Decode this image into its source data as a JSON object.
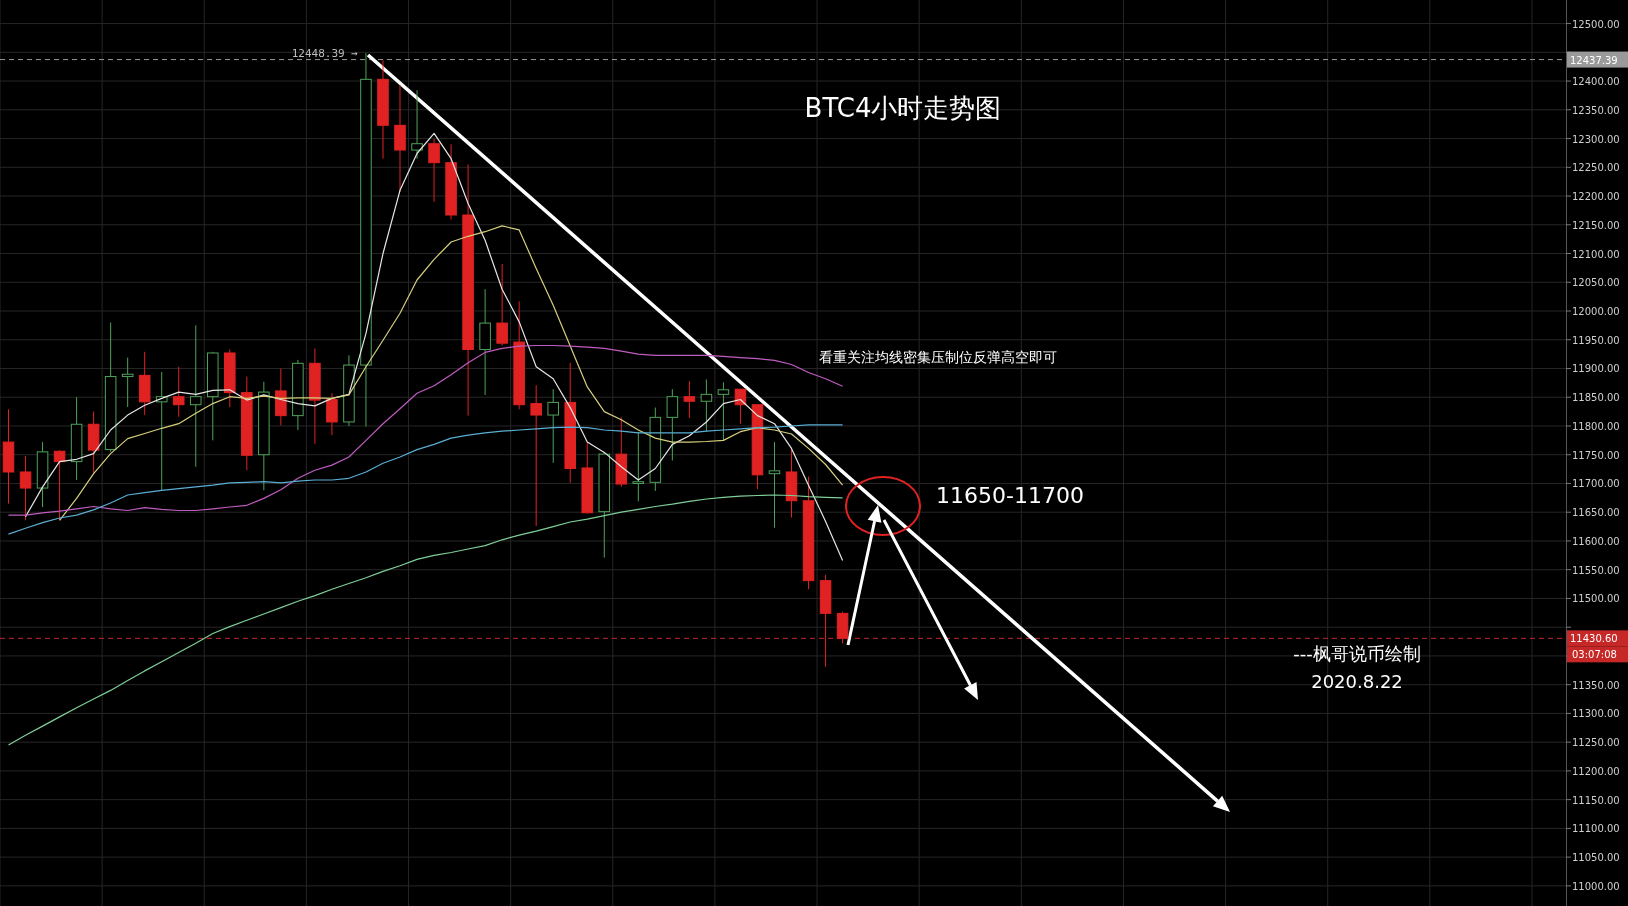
{
  "chart_data": {
    "type": "candlestick",
    "title": "BTC4小时走势图",
    "categories": [
      null,
      null,
      null,
      null,
      null,
      null,
      null,
      null,
      null,
      null,
      null,
      null,
      null,
      null,
      null,
      null,
      null,
      null,
      null,
      null,
      null,
      null,
      null,
      null,
      null,
      null,
      null,
      null,
      null,
      null,
      null,
      null,
      null,
      null,
      null,
      null,
      null,
      null,
      null,
      null,
      null,
      null,
      null,
      null,
      null,
      null,
      null,
      null,
      null,
      null,
      null,
      null,
      null,
      null,
      null,
      null,
      null,
      null,
      null,
      null,
      null,
      null,
      null,
      null,
      null,
      null,
      null,
      null,
      null,
      null,
      null,
      null,
      null,
      null,
      null,
      null,
      null,
      null,
      null,
      null,
      null,
      null,
      null,
      null,
      null,
      null,
      null,
      null,
      null,
      null,
      null,
      null
    ],
    "ohlc": [
      [
        11772,
        11829,
        11665,
        11720
      ],
      [
        11720,
        11748,
        11636,
        11692
      ],
      [
        11692,
        11772,
        11659,
        11755
      ],
      [
        11756,
        11758,
        11636,
        11738
      ],
      [
        11738,
        11850,
        11706,
        11803
      ],
      [
        11803,
        11825,
        11717,
        11758
      ],
      [
        11759,
        11980,
        11755,
        11886
      ],
      [
        11886,
        11919,
        11833,
        11890
      ],
      [
        11888,
        11929,
        11819,
        11842
      ],
      [
        11842,
        11894,
        11688,
        11851
      ],
      [
        11851,
        11903,
        11816,
        11837
      ],
      [
        11837,
        11975,
        11729,
        11851
      ],
      [
        11851,
        11929,
        11775,
        11927
      ],
      [
        11927,
        11933,
        11833,
        11858
      ],
      [
        11858,
        11886,
        11723,
        11749
      ],
      [
        11750,
        11877,
        11688,
        11859
      ],
      [
        11861,
        11900,
        11801,
        11818
      ],
      [
        11818,
        11915,
        11793,
        11909
      ],
      [
        11909,
        11935,
        11769,
        11845
      ],
      [
        11846,
        11857,
        11784,
        11807
      ],
      [
        11807,
        11923,
        11800,
        11906
      ],
      [
        11906,
        12448.39,
        11799,
        12403
      ],
      [
        12403,
        12436,
        12265,
        12323
      ],
      [
        12323,
        12393,
        12207,
        12280
      ],
      [
        12280,
        12384,
        12265,
        12291
      ],
      [
        12291,
        12300,
        12190,
        12258
      ],
      [
        12258,
        12290,
        12159,
        12167
      ],
      [
        12167,
        12255,
        11818,
        11933
      ],
      [
        11933,
        12038,
        11854,
        11979
      ],
      [
        11979,
        12082,
        11940,
        11944
      ],
      [
        11946,
        12017,
        11829,
        11837
      ],
      [
        11839,
        11871,
        11626,
        11819
      ],
      [
        11819,
        11864,
        11736,
        11841
      ],
      [
        11841,
        11910,
        11701,
        11726
      ],
      [
        11727,
        11772,
        11648,
        11649
      ],
      [
        11651,
        11754,
        11571,
        11751
      ],
      [
        11751,
        11815,
        11694,
        11699
      ],
      [
        11700,
        11790,
        11669,
        11703
      ],
      [
        11702,
        11832,
        11687,
        11815
      ],
      [
        11815,
        11864,
        11740,
        11851
      ],
      [
        11851,
        11878,
        11814,
        11843
      ],
      [
        11843,
        11881,
        11790,
        11855
      ],
      [
        11855,
        11876,
        11775,
        11863
      ],
      [
        11864,
        11864,
        11804,
        11837
      ],
      [
        11837,
        11837,
        11690,
        11715
      ],
      [
        11717,
        11772,
        11623,
        11722
      ],
      [
        11720,
        11761,
        11641,
        11670
      ],
      [
        11670,
        11712,
        11516,
        11531
      ],
      [
        11531,
        11541,
        11381,
        11474
      ],
      [
        11474,
        11477,
        11422,
        11430.6
      ],
      null,
      null,
      null,
      null,
      null,
      null,
      null,
      null,
      null,
      null,
      null,
      null,
      null,
      null,
      null,
      null,
      null,
      null,
      null,
      null,
      null,
      null,
      null,
      null,
      null,
      null,
      null,
      null,
      null,
      null,
      null,
      null,
      null,
      null,
      null,
      null,
      null,
      null,
      null,
      null,
      null,
      null
    ],
    "series": [
      {
        "type": "line",
        "color": "#e6e6e6",
        "values": [
          null,
          11642,
          11694,
          11738,
          11742,
          11752,
          11793,
          11819,
          11836,
          11848,
          11859,
          11855,
          11862,
          11863,
          11845,
          11854,
          11846,
          11839,
          11835,
          11848,
          11855,
          11961,
          12100,
          12210,
          12274,
          12309,
          12265,
          12187,
          12123,
          12038,
          11981,
          11903,
          11882,
          11832,
          11772,
          11754,
          11729,
          11706,
          11726,
          11768,
          11783,
          11807,
          11839,
          11846,
          11818,
          11804,
          11761,
          11697,
          11634,
          11566,
          null,
          null,
          null,
          null,
          null,
          null,
          null,
          null,
          null,
          null,
          null,
          null,
          null,
          null,
          null,
          null,
          null,
          null,
          null,
          null,
          null,
          null,
          null,
          null,
          null,
          null,
          null,
          null,
          null,
          null,
          null,
          null,
          null,
          null,
          null,
          null,
          null,
          null,
          null,
          null,
          null,
          null
        ]
      },
      {
        "type": "line",
        "color": "#d6cf7c",
        "values": [
          null,
          null,
          null,
          11636,
          11674,
          11717,
          11752,
          11778,
          11787,
          11796,
          11804,
          11822,
          11839,
          11851,
          11848,
          11852,
          11848,
          11849,
          11849,
          11848,
          11854,
          11903,
          11949,
          11996,
          12054,
          12090,
          12120,
          12130,
          12138,
          12148,
          12141,
          12074,
          12010,
          11939,
          11868,
          11825,
          11811,
          11793,
          11779,
          11772,
          11772,
          11773,
          11775,
          11790,
          11797,
          11793,
          11786,
          11761,
          11733,
          11697,
          null,
          null,
          null,
          null,
          null,
          null,
          null,
          null,
          null,
          null,
          null,
          null,
          null,
          null,
          null,
          null,
          null,
          null,
          null,
          null,
          null,
          null,
          null,
          null,
          null,
          null,
          null,
          null,
          null,
          null,
          null,
          null,
          null,
          null,
          null,
          null,
          null,
          null,
          null,
          null,
          null,
          null
        ]
      },
      {
        "type": "line",
        "color": "#c05cc0",
        "values": [
          11645,
          11645,
          11649,
          11652,
          11656,
          11660,
          11656,
          11653,
          11658,
          11655,
          11653,
          11653,
          11656,
          11659,
          11662,
          11674,
          11689,
          11709,
          11723,
          11732,
          11746,
          11775,
          11804,
          11830,
          11857,
          11870,
          11889,
          11910,
          11928,
          11935,
          11939,
          11940,
          11940,
          11939,
          11937,
          11935,
          11930,
          11925,
          11923,
          11923,
          11923,
          11923,
          11921,
          11919,
          11917,
          11914,
          11907,
          11893,
          11882,
          11869,
          null,
          null,
          null,
          null,
          null,
          null,
          null,
          null,
          null,
          null,
          null,
          null,
          null,
          null,
          null,
          null,
          null,
          null,
          null,
          null,
          null,
          null,
          null,
          null,
          null,
          null,
          null,
          null,
          null,
          null,
          null,
          null,
          null,
          null,
          null,
          null,
          null,
          null,
          null,
          null,
          null,
          null
        ]
      },
      {
        "type": "line",
        "color": "#5aaed4",
        "values": [
          11612,
          11622,
          11632,
          11640,
          11645,
          11654,
          11666,
          11680,
          11684,
          11688,
          11691,
          11694,
          11697,
          11701,
          11702,
          11703,
          11701,
          11704,
          11706,
          11706,
          11709,
          11720,
          11735,
          11746,
          11759,
          11768,
          11779,
          11784,
          11788,
          11791,
          11793,
          11795,
          11797,
          11798,
          11797,
          11793,
          11791,
          11788,
          11788,
          11788,
          11788,
          11791,
          11793,
          11795,
          11797,
          11798,
          11800,
          11802,
          11802,
          11802,
          null,
          null,
          null,
          null,
          null,
          null,
          null,
          null,
          null,
          null,
          null,
          null,
          null,
          null,
          null,
          null,
          null,
          null,
          null,
          null,
          null,
          null,
          null,
          null,
          null,
          null,
          null,
          null,
          null,
          null,
          null,
          null,
          null,
          null,
          null,
          null,
          null,
          null,
          null,
          null,
          null,
          null
        ]
      },
      {
        "type": "line",
        "color": "#7fcf98",
        "values": [
          11245,
          11262,
          11278,
          11294,
          11310,
          11325,
          11340,
          11357,
          11374,
          11390,
          11406,
          11422,
          11439,
          11451,
          11462,
          11473,
          11484,
          11495,
          11505,
          11516,
          11526,
          11536,
          11547,
          11557,
          11568,
          11575,
          11580,
          11586,
          11592,
          11602,
          11610,
          11617,
          11625,
          11633,
          11638,
          11644,
          11650,
          11655,
          11660,
          11664,
          11669,
          11673,
          11676,
          11678,
          11679,
          11680,
          11679,
          11677,
          11676,
          11675,
          null,
          null,
          null,
          null,
          null,
          null,
          null,
          null,
          null,
          null,
          null,
          null,
          null,
          null,
          null,
          null,
          null,
          null,
          null,
          null,
          null,
          null,
          null,
          null,
          null,
          null,
          null,
          null,
          null,
          null,
          null,
          null,
          null,
          null,
          null,
          null,
          null,
          null,
          null,
          null,
          null,
          null
        ]
      }
    ],
    "ylim": [
      10965,
      12541
    ],
    "yticks": [
      {
        "value": 11000,
        "label": "11000.00"
      },
      {
        "value": 11050,
        "label": "11050.00"
      },
      {
        "value": 11100,
        "label": "11100.00"
      },
      {
        "value": 11150,
        "label": "11150.00"
      },
      {
        "value": 11200,
        "label": "11200.00"
      },
      {
        "value": 11250,
        "label": "11250.00"
      },
      {
        "value": 11300,
        "label": "11300.00"
      },
      {
        "value": 11350,
        "label": "11350.00"
      },
      {
        "value": 11400,
        "label": null
      },
      {
        "value": 11450,
        "label": null
      },
      {
        "value": 11500,
        "label": "11500.00"
      },
      {
        "value": 11550,
        "label": "11550.00"
      },
      {
        "value": 11600,
        "label": "11600.00"
      },
      {
        "value": 11650,
        "label": "11650.00"
      },
      {
        "value": 11700,
        "label": "11700.00"
      },
      {
        "value": 11750,
        "label": "11750.00"
      },
      {
        "value": 11800,
        "label": "11800.00"
      },
      {
        "value": 11850,
        "label": "11850.00"
      },
      {
        "value": 11900,
        "label": "11900.00"
      },
      {
        "value": 11950,
        "label": "11950.00"
      },
      {
        "value": 12000,
        "label": "12000.00"
      },
      {
        "value": 12050,
        "label": "12050.00"
      },
      {
        "value": 12100,
        "label": "12100.00"
      },
      {
        "value": 12150,
        "label": "12150.00"
      },
      {
        "value": 12200,
        "label": "12200.00"
      },
      {
        "value": 12250,
        "label": "12250.00"
      },
      {
        "value": 12300,
        "label": "12300.00"
      },
      {
        "value": 12350,
        "label": "12350.00"
      },
      {
        "value": 12400,
        "label": "12400.00"
      },
      {
        "value": 12450,
        "label": null
      },
      {
        "value": 12500,
        "label": "12500.00"
      }
    ],
    "ref_lines": [
      {
        "axis": "y",
        "value": 12437.39,
        "label": "12437.39",
        "color": "#9a9a9a",
        "line_style": "dashed"
      },
      {
        "axis": "y",
        "value": 11430.6,
        "label": "11430.60",
        "color": "#c62828",
        "line_style": "dashed"
      }
    ],
    "annotations": [
      "12448.39 →",
      "看重关注均线密集压制位反弹高空即可",
      "11650-11700",
      "---枫哥说币绘制",
      "2020.8.22",
      "03:07:08"
    ],
    "grid": true
  }
}
